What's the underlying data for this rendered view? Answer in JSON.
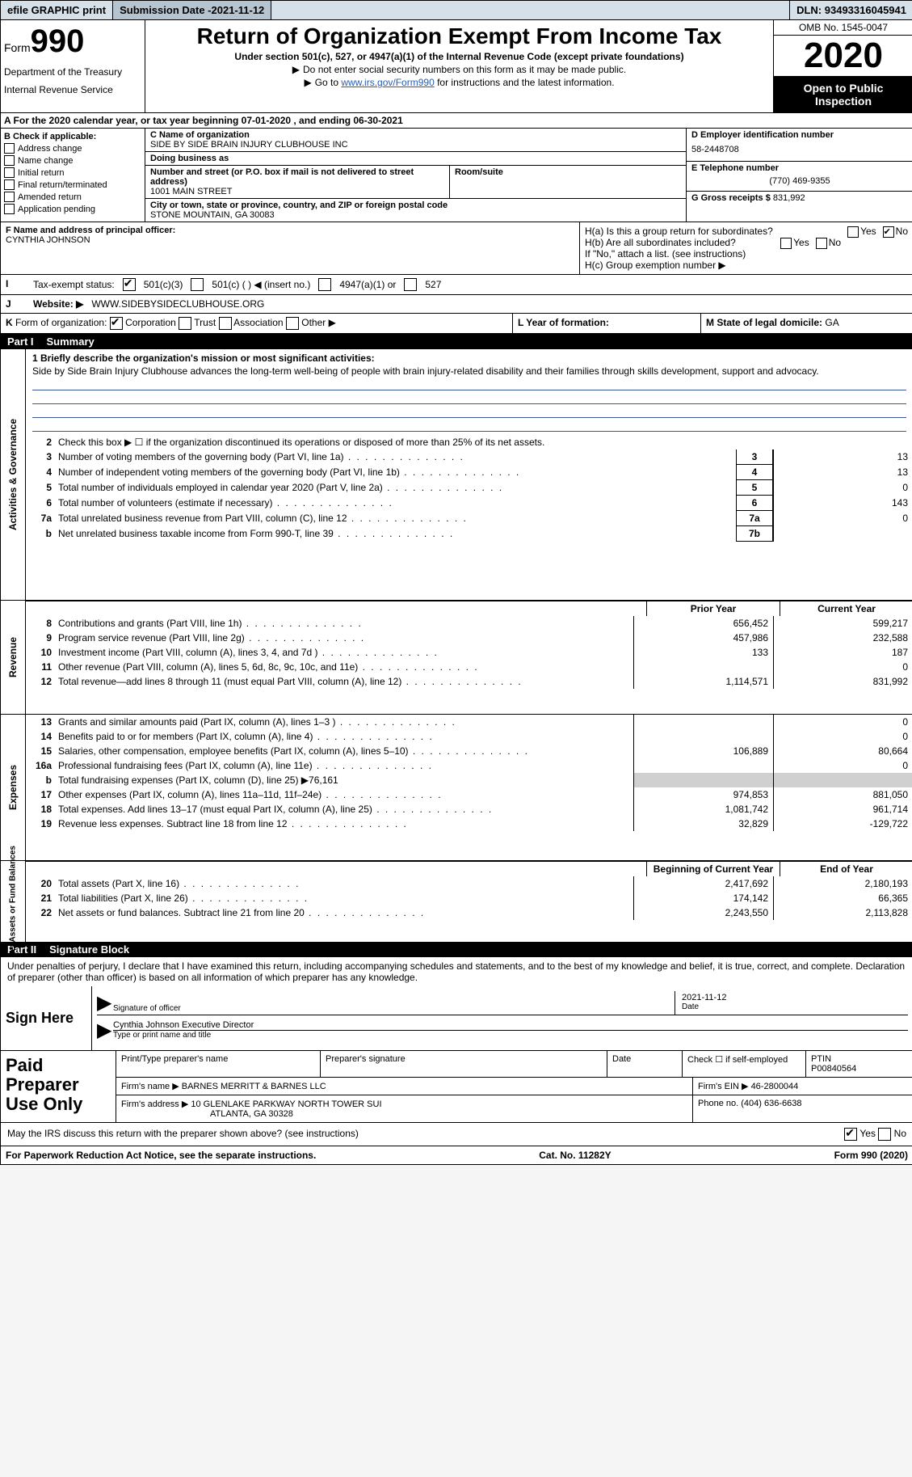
{
  "topbar": {
    "efile": "efile GRAPHIC print",
    "subdate_label": "Submission Date - ",
    "subdate": "2021-11-12",
    "dln_label": "DLN: ",
    "dln": "93493316045941"
  },
  "header": {
    "form_word": "Form",
    "form_num": "990",
    "dept1": "Department of the Treasury",
    "dept2": "Internal Revenue Service",
    "title": "Return of Organization Exempt From Income Tax",
    "subtitle": "Under section 501(c), 527, or 4947(a)(1) of the Internal Revenue Code (except private foundations)",
    "line_a": "Do not enter social security numbers on this form as it may be made public.",
    "line_b_pre": "Go to ",
    "line_b_link": "www.irs.gov/Form990",
    "line_b_post": " for instructions and the latest information.",
    "omb": "OMB No. 1545-0047",
    "year": "2020",
    "inspection": "Open to Public Inspection"
  },
  "row_a": "A  For the 2020 calendar year, or tax year beginning 07-01-2020    , and ending 06-30-2021",
  "box_b": {
    "hdr": "B Check if applicable:",
    "items": [
      "Address change",
      "Name change",
      "Initial return",
      "Final return/terminated",
      "Amended return",
      "Application pending"
    ]
  },
  "box_c": {
    "name_label": "C Name of organization",
    "name": "SIDE BY SIDE BRAIN INJURY CLUBHOUSE INC",
    "dba_label": "Doing business as",
    "dba": "",
    "street_label": "Number and street (or P.O. box if mail is not delivered to street address)",
    "room_label": "Room/suite",
    "street": "1001 MAIN STREET",
    "city_label": "City or town, state or province, country, and ZIP or foreign postal code",
    "city": "STONE MOUNTAIN, GA  30083"
  },
  "box_de": {
    "ein_label": "D Employer identification number",
    "ein": "58-2448708",
    "tel_label": "E Telephone number",
    "tel": "(770) 469-9355",
    "gross_label": "G Gross receipts $ ",
    "gross": "831,992"
  },
  "block_fh": {
    "f_label": "F Name and address of principal officer:",
    "f_name": "CYNTHIA JOHNSON",
    "ha": "H(a)  Is this a group return for subordinates?",
    "hb": "H(b)  Are all subordinates included?",
    "hnote": "If \"No,\" attach a list. (see instructions)",
    "hc": "H(c)  Group exemption number ▶",
    "yes": "Yes",
    "no": "No"
  },
  "row_i": {
    "label": "I",
    "txt": "Tax-exempt status:",
    "o1": "501(c)(3)",
    "o2": "501(c) (   ) ◀ (insert no.)",
    "o3": "4947(a)(1) or",
    "o4": "527"
  },
  "row_j": {
    "label": "J",
    "txt": "Website: ▶",
    "val": "WWW.SIDEBYSIDECLUBHOUSE.ORG"
  },
  "row_k": {
    "label": "K",
    "txt": "Form of organization:",
    "opts": [
      "Corporation",
      "Trust",
      "Association",
      "Other ▶"
    ],
    "l_label": "L Year of formation:",
    "m_label": "M State of legal domicile: ",
    "m_val": "GA"
  },
  "part1": {
    "num": "Part I",
    "title": "Summary"
  },
  "sect_labels": {
    "gov": "Activities & Governance",
    "rev": "Revenue",
    "exp": "Expenses",
    "net": "Net Assets or Fund Balances"
  },
  "mission": {
    "lead": "1  Briefly describe the organization's mission or most significant activities:",
    "text": "Side by Side Brain Injury Clubhouse advances the long-term well-being of people with brain injury-related disability and their families through skills development, support and advocacy."
  },
  "gov_lines": [
    {
      "n": "2",
      "t": "Check this box ▶ ☐  if the organization discontinued its operations or disposed of more than 25% of its net assets."
    },
    {
      "n": "3",
      "t": "Number of voting members of the governing body (Part VI, line 1a)",
      "box": "3",
      "v": "13"
    },
    {
      "n": "4",
      "t": "Number of independent voting members of the governing body (Part VI, line 1b)",
      "box": "4",
      "v": "13"
    },
    {
      "n": "5",
      "t": "Total number of individuals employed in calendar year 2020 (Part V, line 2a)",
      "box": "5",
      "v": "0"
    },
    {
      "n": "6",
      "t": "Total number of volunteers (estimate if necessary)",
      "box": "6",
      "v": "143"
    },
    {
      "n": "7a",
      "t": "Total unrelated business revenue from Part VIII, column (C), line 12",
      "box": "7a",
      "v": "0"
    },
    {
      "n": "b",
      "t": "Net unrelated business taxable income from Form 990-T, line 39",
      "box": "7b",
      "v": ""
    }
  ],
  "col_hdr": {
    "prior": "Prior Year",
    "current": "Current Year",
    "beg": "Beginning of Current Year",
    "end": "End of Year"
  },
  "rev_lines": [
    {
      "n": "8",
      "t": "Contributions and grants (Part VIII, line 1h)",
      "p": "656,452",
      "c": "599,217"
    },
    {
      "n": "9",
      "t": "Program service revenue (Part VIII, line 2g)",
      "p": "457,986",
      "c": "232,588"
    },
    {
      "n": "10",
      "t": "Investment income (Part VIII, column (A), lines 3, 4, and 7d )",
      "p": "133",
      "c": "187"
    },
    {
      "n": "11",
      "t": "Other revenue (Part VIII, column (A), lines 5, 6d, 8c, 9c, 10c, and 11e)",
      "p": "",
      "c": "0"
    },
    {
      "n": "12",
      "t": "Total revenue—add lines 8 through 11 (must equal Part VIII, column (A), line 12)",
      "p": "1,114,571",
      "c": "831,992"
    }
  ],
  "exp_lines": [
    {
      "n": "13",
      "t": "Grants and similar amounts paid (Part IX, column (A), lines 1–3 )",
      "p": "",
      "c": "0"
    },
    {
      "n": "14",
      "t": "Benefits paid to or for members (Part IX, column (A), line 4)",
      "p": "",
      "c": "0"
    },
    {
      "n": "15",
      "t": "Salaries, other compensation, employee benefits (Part IX, column (A), lines 5–10)",
      "p": "106,889",
      "c": "80,664"
    },
    {
      "n": "16a",
      "t": "Professional fundraising fees (Part IX, column (A), line 11e)",
      "p": "",
      "c": "0"
    },
    {
      "n": "b",
      "t": "Total fundraising expenses (Part IX, column (D), line 25) ▶76,161",
      "gray": true
    },
    {
      "n": "17",
      "t": "Other expenses (Part IX, column (A), lines 11a–11d, 11f–24e)",
      "p": "974,853",
      "c": "881,050"
    },
    {
      "n": "18",
      "t": "Total expenses. Add lines 13–17 (must equal Part IX, column (A), line 25)",
      "p": "1,081,742",
      "c": "961,714"
    },
    {
      "n": "19",
      "t": "Revenue less expenses. Subtract line 18 from line 12",
      "p": "32,829",
      "c": "-129,722"
    }
  ],
  "net_lines": [
    {
      "n": "20",
      "t": "Total assets (Part X, line 16)",
      "p": "2,417,692",
      "c": "2,180,193"
    },
    {
      "n": "21",
      "t": "Total liabilities (Part X, line 26)",
      "p": "174,142",
      "c": "66,365"
    },
    {
      "n": "22",
      "t": "Net assets or fund balances. Subtract line 21 from line 20",
      "p": "2,243,550",
      "c": "2,113,828"
    }
  ],
  "part2": {
    "num": "Part II",
    "title": "Signature Block"
  },
  "sig": {
    "decl": "Under penalties of perjury, I declare that I have examined this return, including accompanying schedules and statements, and to the best of my knowledge and belief, it is true, correct, and complete. Declaration of preparer (other than officer) is based on all information of which preparer has any knowledge.",
    "sign_here": "Sign Here",
    "sig_officer": "Signature of officer",
    "date": "Date",
    "date_val": "2021-11-12",
    "name_title": "Cynthia Johnson  Executive Director",
    "name_label": "Type or print name and title"
  },
  "prep": {
    "label": "Paid Preparer Use Only",
    "h_print": "Print/Type preparer's name",
    "h_sig": "Preparer's signature",
    "h_date": "Date",
    "h_check": "Check ☐ if self-employed",
    "h_ptin": "PTIN",
    "ptin": "P00840564",
    "firm_name_l": "Firm's name    ▶",
    "firm_name": "BARNES MERRITT & BARNES LLC",
    "firm_ein_l": "Firm's EIN ▶",
    "firm_ein": "46-2800044",
    "firm_addr_l": "Firm's address ▶",
    "firm_addr1": "10 GLENLAKE PARKWAY NORTH TOWER SUI",
    "firm_addr2": "ATLANTA, GA  30328",
    "phone_l": "Phone no.",
    "phone": "(404) 636-6638"
  },
  "discuss": {
    "txt": "May the IRS discuss this return with the preparer shown above? (see instructions)",
    "yes": "Yes",
    "no": "No"
  },
  "footer": {
    "left": "For Paperwork Reduction Act Notice, see the separate instructions.",
    "mid": "Cat. No. 11282Y",
    "right": "Form 990 (2020)"
  },
  "colors": {
    "topbar_bg": "#d6e0e8",
    "rule": "#3b5998",
    "gray": "#d0d0d0"
  }
}
